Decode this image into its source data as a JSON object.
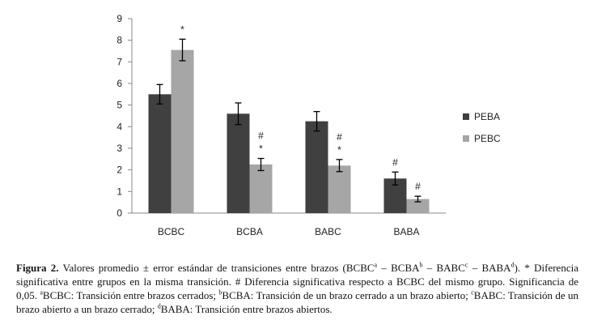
{
  "chart_data": {
    "type": "bar",
    "categories": [
      "BCBC",
      "BCBA",
      "BABC",
      "BABA"
    ],
    "series": [
      {
        "name": "PEBA",
        "color": "#404040",
        "values": [
          5.5,
          4.6,
          4.25,
          1.6
        ],
        "errors": [
          0.45,
          0.5,
          0.45,
          0.3
        ],
        "annotations": [
          null,
          null,
          null,
          [
            "#"
          ]
        ]
      },
      {
        "name": "PEBC",
        "color": "#a6a6a6",
        "values": [
          7.55,
          2.25,
          2.2,
          0.65
        ],
        "errors": [
          0.5,
          0.28,
          0.28,
          0.13
        ],
        "annotations": [
          [
            "*"
          ],
          [
            "#",
            "*"
          ],
          [
            "#",
            "*"
          ],
          [
            "#"
          ]
        ]
      }
    ],
    "ylim": [
      0,
      9
    ],
    "yticks": [
      0,
      1,
      2,
      3,
      4,
      5,
      6,
      7,
      8,
      9
    ],
    "legend": "right"
  },
  "caption": [
    {
      "bold": "Figura 2."
    },
    {
      "text": " Valores promedio ± error estándar de transiciones entre brazos (BCBC"
    },
    {
      "sup": "a"
    },
    {
      "text": " – BCBA"
    },
    {
      "sup": "b"
    },
    {
      "text": " – BABC"
    },
    {
      "sup": "c"
    },
    {
      "text": " – BABA"
    },
    {
      "sup": "d"
    },
    {
      "text": "). * Diferencia significativa entre grupos en la misma transición. # Diferencia significativa respecto a BCBC del mismo grupo. Significancia de 0,05. "
    },
    {
      "sup": "a"
    },
    {
      "text": "BCBC: Transición entre brazos cerrados; "
    },
    {
      "sup": "b"
    },
    {
      "text": "BCBA: Transición de un brazo cerrado a un brazo abierto; "
    },
    {
      "sup": "c"
    },
    {
      "text": "BABC: Transición de un brazo abierto a un brazo cerrado; "
    },
    {
      "sup": "d"
    },
    {
      "text": "BABA: Transición entre brazos abiertos."
    }
  ]
}
